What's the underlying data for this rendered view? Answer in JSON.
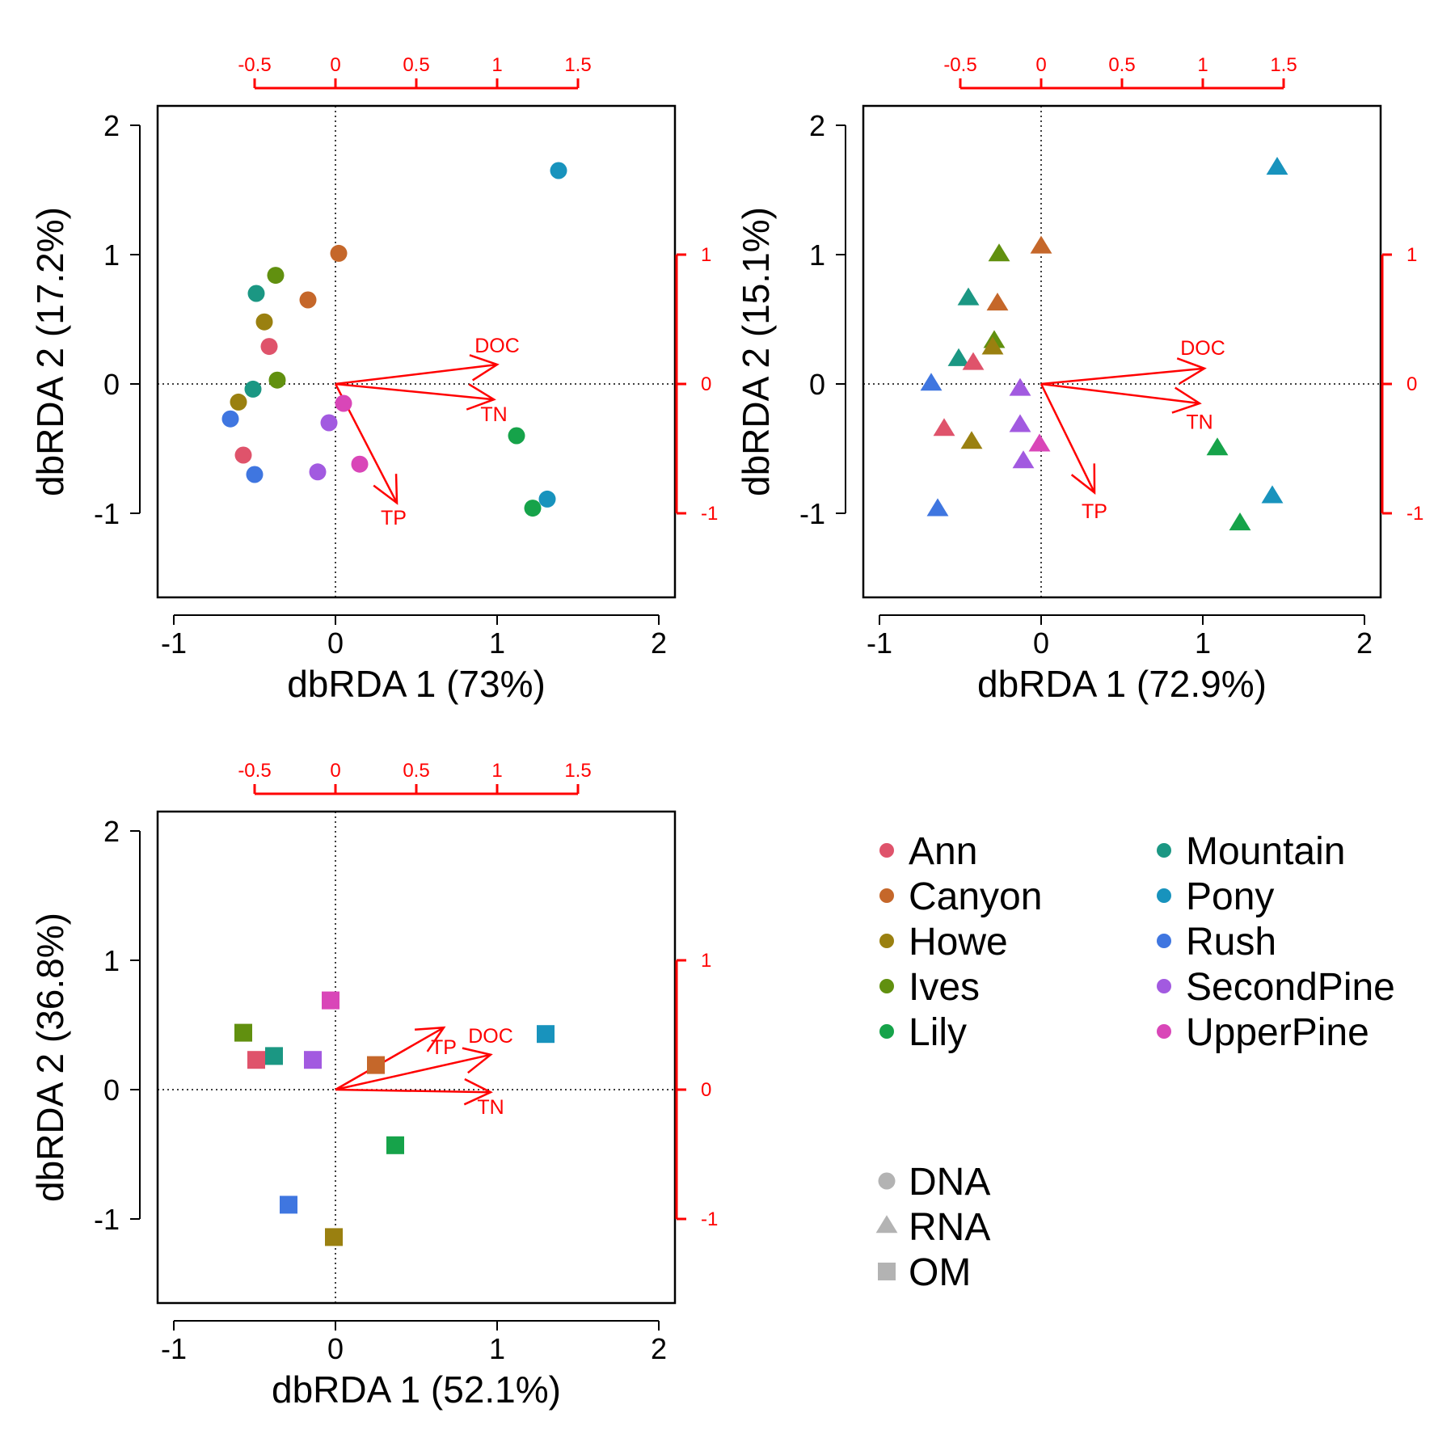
{
  "colors": {
    "biplot": "#ff0000",
    "axis": "#000000",
    "zero_line": "#000000",
    "legend_shape": "#b3b3b3"
  },
  "legend": {
    "sites": [
      {
        "name": "Ann",
        "color": "#df536b"
      },
      {
        "name": "Canyon",
        "color": "#c5672a"
      },
      {
        "name": "Howe",
        "color": "#9a8010"
      },
      {
        "name": "Ives",
        "color": "#61900f"
      },
      {
        "name": "Lily",
        "color": "#16a34a"
      },
      {
        "name": "Mountain",
        "color": "#1b9783"
      },
      {
        "name": "Pony",
        "color": "#1893bd"
      },
      {
        "name": "Rush",
        "color": "#3f76e0"
      },
      {
        "name": "SecondPine",
        "color": "#a25ae0"
      },
      {
        "name": "UpperPine",
        "color": "#d946b8"
      }
    ],
    "types": [
      {
        "name": "DNA",
        "shape": "circle"
      },
      {
        "name": "RNA",
        "shape": "triangle"
      },
      {
        "name": "OM",
        "shape": "square"
      }
    ]
  },
  "chart_data": [
    {
      "type": "scatter",
      "marker": "circle",
      "xlabel": "dbRDA 1 (73%)",
      "ylabel": "dbRDA 2 (17.2%)",
      "xlim": [
        -1.1,
        2.1
      ],
      "ylim": [
        -1.65,
        2.15
      ],
      "xticks": [
        -1,
        0,
        1,
        2
      ],
      "yticks": [
        -1,
        0,
        1,
        2
      ],
      "biplot_axes": {
        "top_ticks": [
          -0.5,
          0,
          0.5,
          1,
          1.5
        ],
        "top_tick_labels": [
          "-0.5",
          "0",
          "0.5",
          "1",
          "1.5"
        ],
        "right_ticks": [
          -1,
          0,
          1
        ],
        "right_tick_labels": [
          "-1",
          "0",
          "1"
        ]
      },
      "grid": false,
      "zero_lines": true,
      "points": [
        {
          "site": "Pony",
          "x": 1.38,
          "y": 1.65
        },
        {
          "site": "Canyon",
          "x": 0.02,
          "y": 1.01
        },
        {
          "site": "Ives",
          "x": -0.37,
          "y": 0.84
        },
        {
          "site": "Mountain",
          "x": -0.49,
          "y": 0.7
        },
        {
          "site": "Canyon",
          "x": -0.17,
          "y": 0.65
        },
        {
          "site": "Howe",
          "x": -0.44,
          "y": 0.48
        },
        {
          "site": "Ann",
          "x": -0.41,
          "y": 0.29
        },
        {
          "site": "Ives",
          "x": -0.36,
          "y": 0.03
        },
        {
          "site": "Mountain",
          "x": -0.51,
          "y": -0.04
        },
        {
          "site": "Howe",
          "x": -0.6,
          "y": -0.14
        },
        {
          "site": "UpperPine",
          "x": 0.05,
          "y": -0.15
        },
        {
          "site": "Rush",
          "x": -0.65,
          "y": -0.27
        },
        {
          "site": "SecondPine",
          "x": -0.04,
          "y": -0.3
        },
        {
          "site": "Lily",
          "x": 1.12,
          "y": -0.4
        },
        {
          "site": "Ann",
          "x": -0.57,
          "y": -0.55
        },
        {
          "site": "UpperPine",
          "x": 0.15,
          "y": -0.62
        },
        {
          "site": "SecondPine",
          "x": -0.11,
          "y": -0.68
        },
        {
          "site": "Rush",
          "x": -0.5,
          "y": -0.7
        },
        {
          "site": "Pony",
          "x": 1.31,
          "y": -0.89
        },
        {
          "site": "Lily",
          "x": 1.22,
          "y": -0.96
        }
      ],
      "vectors": [
        {
          "label": "DOC",
          "x": 1.0,
          "y": 0.15,
          "label_x": 1.0,
          "label_y": 0.3
        },
        {
          "label": "TN",
          "x": 0.98,
          "y": -0.12,
          "label_x": 0.98,
          "label_y": -0.23
        },
        {
          "label": "TP",
          "x": 0.38,
          "y": -0.92,
          "label_x": 0.36,
          "label_y": -1.03
        }
      ]
    },
    {
      "type": "scatter",
      "marker": "triangle",
      "xlabel": "dbRDA 1 (72.9%)",
      "ylabel": "dbRDA 2 (15.1%)",
      "xlim": [
        -1.1,
        2.1
      ],
      "ylim": [
        -1.65,
        2.15
      ],
      "xticks": [
        -1,
        0,
        1,
        2
      ],
      "yticks": [
        -1,
        0,
        1,
        2
      ],
      "biplot_axes": {
        "top_ticks": [
          -0.5,
          0,
          0.5,
          1,
          1.5
        ],
        "top_tick_labels": [
          "-0.5",
          "0",
          "0.5",
          "1",
          "1.5"
        ],
        "right_ticks": [
          -1,
          0,
          1
        ],
        "right_tick_labels": [
          "-1",
          "0",
          "1"
        ]
      },
      "grid": false,
      "zero_lines": true,
      "points": [
        {
          "site": "Pony",
          "x": 1.46,
          "y": 1.67
        },
        {
          "site": "Canyon",
          "x": 0.0,
          "y": 1.06
        },
        {
          "site": "Ives",
          "x": -0.26,
          "y": 1.0
        },
        {
          "site": "Mountain",
          "x": -0.45,
          "y": 0.66
        },
        {
          "site": "Canyon",
          "x": -0.27,
          "y": 0.62
        },
        {
          "site": "Ives",
          "x": -0.29,
          "y": 0.33
        },
        {
          "site": "Howe",
          "x": -0.3,
          "y": 0.28
        },
        {
          "site": "Mountain",
          "x": -0.51,
          "y": 0.19
        },
        {
          "site": "Ann",
          "x": -0.42,
          "y": 0.16
        },
        {
          "site": "Rush",
          "x": -0.68,
          "y": 0.0
        },
        {
          "site": "SecondPine",
          "x": -0.13,
          "y": -0.04
        },
        {
          "site": "SecondPine",
          "x": -0.13,
          "y": -0.32
        },
        {
          "site": "Ann",
          "x": -0.6,
          "y": -0.35
        },
        {
          "site": "Howe",
          "x": -0.43,
          "y": -0.45
        },
        {
          "site": "UpperPine",
          "x": -0.01,
          "y": -0.47
        },
        {
          "site": "Lily",
          "x": 1.09,
          "y": -0.5
        },
        {
          "site": "SecondPine",
          "x": -0.11,
          "y": -0.6
        },
        {
          "site": "Pony",
          "x": 1.43,
          "y": -0.87
        },
        {
          "site": "Rush",
          "x": -0.64,
          "y": -0.97
        },
        {
          "site": "Lily",
          "x": 1.23,
          "y": -1.08
        }
      ],
      "vectors": [
        {
          "label": "DOC",
          "x": 1.01,
          "y": 0.12,
          "label_x": 1.0,
          "label_y": 0.28
        },
        {
          "label": "TN",
          "x": 0.98,
          "y": -0.15,
          "label_x": 0.98,
          "label_y": -0.29
        },
        {
          "label": "TP",
          "x": 0.33,
          "y": -0.84,
          "label_x": 0.33,
          "label_y": -0.98
        }
      ]
    },
    {
      "type": "scatter",
      "marker": "square",
      "xlabel": "dbRDA 1 (52.1%)",
      "ylabel": "dbRDA 2 (36.8%)",
      "xlim": [
        -1.1,
        2.1
      ],
      "ylim": [
        -1.65,
        2.15
      ],
      "xticks": [
        -1,
        0,
        1,
        2
      ],
      "yticks": [
        -1,
        0,
        1,
        2
      ],
      "biplot_axes": {
        "top_ticks": [
          -0.5,
          0,
          0.5,
          1,
          1.5
        ],
        "top_tick_labels": [
          "-0.5",
          "0",
          "0.5",
          "1",
          "1.5"
        ],
        "right_ticks": [
          -1,
          0,
          1
        ],
        "right_tick_labels": [
          "-1",
          "0",
          "1"
        ]
      },
      "grid": false,
      "zero_lines": true,
      "points": [
        {
          "site": "UpperPine",
          "x": -0.03,
          "y": 0.69
        },
        {
          "site": "Ives",
          "x": -0.57,
          "y": 0.44
        },
        {
          "site": "Pony",
          "x": 1.3,
          "y": 0.43
        },
        {
          "site": "Mountain",
          "x": -0.38,
          "y": 0.26
        },
        {
          "site": "Ann",
          "x": -0.49,
          "y": 0.23
        },
        {
          "site": "SecondPine",
          "x": -0.14,
          "y": 0.23
        },
        {
          "site": "Canyon",
          "x": 0.25,
          "y": 0.19
        },
        {
          "site": "Lily",
          "x": 0.37,
          "y": -0.43
        },
        {
          "site": "Rush",
          "x": -0.29,
          "y": -0.89
        },
        {
          "site": "Howe",
          "x": -0.01,
          "y": -1.14
        }
      ],
      "vectors": [
        {
          "label": "DOC",
          "x": 0.96,
          "y": 0.27,
          "label_x": 0.96,
          "label_y": 0.42
        },
        {
          "label": "TN",
          "x": 0.96,
          "y": -0.02,
          "label_x": 0.96,
          "label_y": -0.13
        },
        {
          "label": "TP",
          "x": 0.67,
          "y": 0.48,
          "label_x": 0.67,
          "label_y": 0.33
        }
      ]
    }
  ]
}
